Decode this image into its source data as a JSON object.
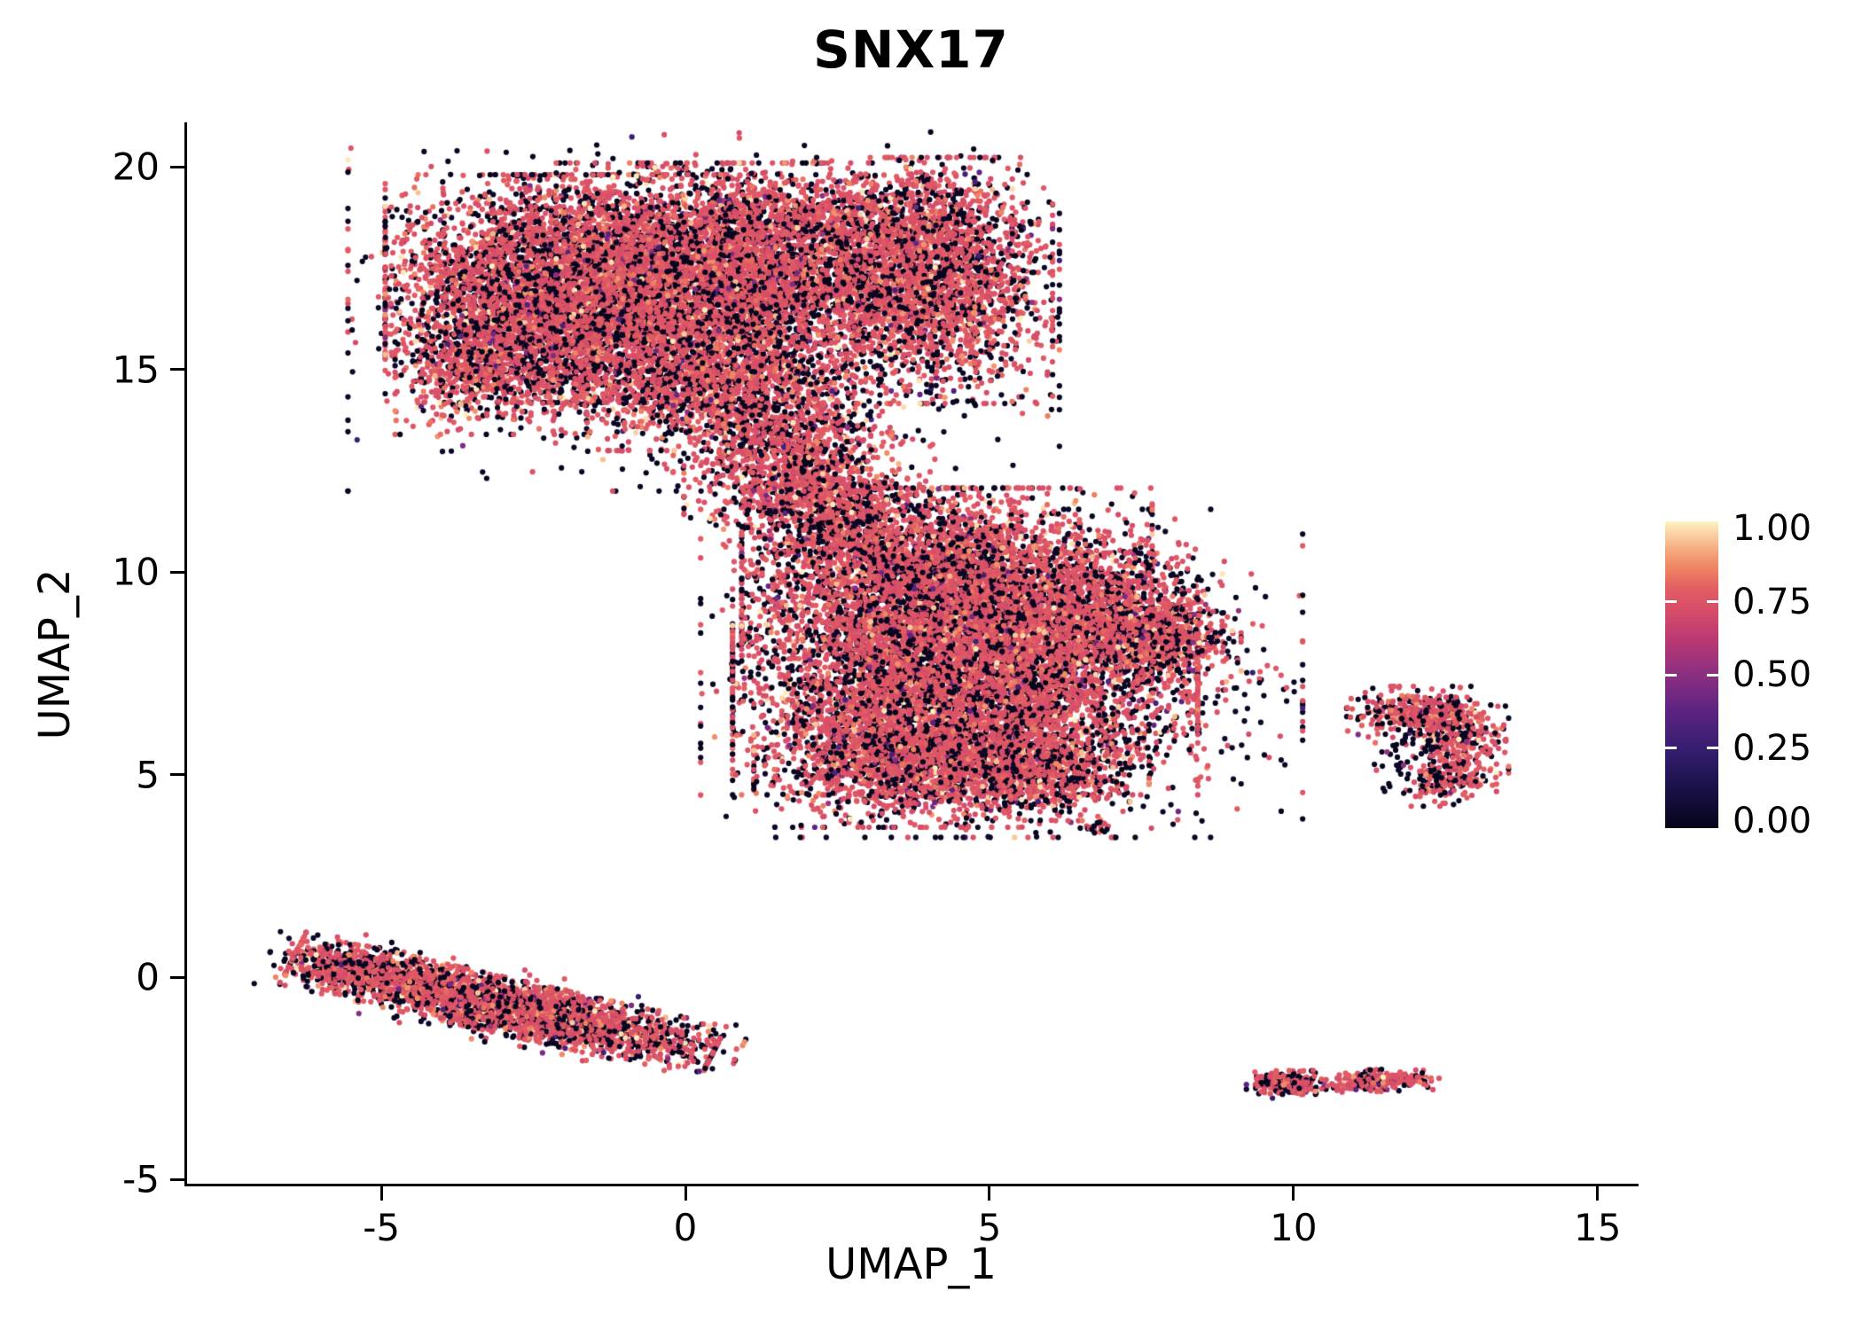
{
  "colors": {
    "background": "#ffffff",
    "axis": "#000000",
    "text": "#000000"
  },
  "chart_data": {
    "type": "scatter",
    "title": "SNX17",
    "xlabel": "UMAP_1",
    "ylabel": "UMAP_2",
    "xlim": [
      -8.21,
      15.63
    ],
    "ylim": [
      -5.1,
      21.06
    ],
    "grid": false,
    "legend_position": "right",
    "x_ticks": [
      {
        "label": "-5",
        "value": -5
      },
      {
        "label": "0",
        "value": 0
      },
      {
        "label": "5",
        "value": 5
      },
      {
        "label": "10",
        "value": 10
      },
      {
        "label": "15",
        "value": 15
      }
    ],
    "y_ticks": [
      {
        "label": "-5",
        "value": -5
      },
      {
        "label": "0",
        "value": 0
      },
      {
        "label": "5",
        "value": 5
      },
      {
        "label": "10",
        "value": 10
      },
      {
        "label": "15",
        "value": 15
      },
      {
        "label": "20",
        "value": 20
      }
    ],
    "colorbar": {
      "ticks": [
        {
          "label": "1.00",
          "value": 1.0
        },
        {
          "label": "0.75",
          "value": 0.75
        },
        {
          "label": "0.50",
          "value": 0.5
        },
        {
          "label": "0.25",
          "value": 0.25
        },
        {
          "label": "0.00",
          "value": 0.0
        }
      ]
    },
    "colormap": {
      "name": "magma-like-expression-scale",
      "stops": [
        [
          0.0,
          "#05041a"
        ],
        [
          0.12,
          "#191046"
        ],
        [
          0.25,
          "#331d6e"
        ],
        [
          0.38,
          "#5c2382"
        ],
        [
          0.5,
          "#8b2f80"
        ],
        [
          0.62,
          "#bc3a72"
        ],
        [
          0.72,
          "#d94f68"
        ],
        [
          0.78,
          "#e25e63"
        ],
        [
          0.85,
          "#ef8562"
        ],
        [
          0.92,
          "#f7b287"
        ],
        [
          1.0,
          "#fdf3c3"
        ]
      ]
    },
    "point_radius_px": 3.1,
    "seed": 20240607,
    "value_distribution": [
      {
        "p": 0.26,
        "lo": 0.0,
        "hi": 0.04
      },
      {
        "p": 0.02,
        "lo": 0.3,
        "hi": 0.55
      },
      {
        "p": 0.61,
        "lo": 0.7,
        "hi": 0.78
      },
      {
        "p": 0.08,
        "lo": 0.78,
        "hi": 0.88
      },
      {
        "p": 0.03,
        "lo": 0.92,
        "hi": 1.0
      }
    ],
    "value_distribution_dark": [
      {
        "p": 0.62,
        "lo": 0.0,
        "hi": 0.05
      },
      {
        "p": 0.05,
        "lo": 0.25,
        "hi": 0.55
      },
      {
        "p": 0.27,
        "lo": 0.7,
        "hi": 0.78
      },
      {
        "p": 0.04,
        "lo": 0.78,
        "hi": 0.88
      },
      {
        "p": 0.02,
        "lo": 0.92,
        "hi": 1.0
      }
    ],
    "clusters": [
      {
        "name": "upper-left-main",
        "components": [
          {
            "cx": 0.3,
            "cy": 16.5,
            "sx": 2.6,
            "sy": 2.0,
            "n": 1500,
            "dark": true
          },
          {
            "cx": -1.9,
            "cy": 17.0,
            "sx": 1.35,
            "sy": 1.25,
            "n": 5200
          },
          {
            "cx": 0.8,
            "cy": 17.4,
            "sx": 1.3,
            "sy": 1.2,
            "n": 3800
          },
          {
            "cx": 3.9,
            "cy": 17.2,
            "sx": 0.95,
            "sy": 1.35,
            "n": 2600
          },
          {
            "cx": 2.9,
            "cy": 18.7,
            "sx": 1.1,
            "sy": 0.5,
            "n": 500
          },
          {
            "cx": -3.2,
            "cy": 15.2,
            "sx": 0.7,
            "sy": 0.8,
            "n": 900
          },
          {
            "cx": 0.3,
            "cy": 14.8,
            "sx": 1.1,
            "sy": 0.8,
            "n": 1400
          },
          {
            "cx": 1.6,
            "cy": 13.3,
            "sx": 0.8,
            "sy": 0.8,
            "n": 900
          },
          {
            "cx": 2.0,
            "cy": 12.0,
            "sx": 0.9,
            "sy": 0.7,
            "n": 500
          }
        ]
      },
      {
        "name": "central-main",
        "components": [
          {
            "cx": 5.2,
            "cy": 7.5,
            "sx": 2.2,
            "sy": 1.8,
            "n": 1600,
            "dark": true
          },
          {
            "cx": 4.3,
            "cy": 9.6,
            "sx": 1.5,
            "sy": 1.1,
            "n": 4200
          },
          {
            "cx": 4.6,
            "cy": 7.2,
            "sx": 1.7,
            "sy": 1.2,
            "n": 4200
          },
          {
            "cx": 3.6,
            "cy": 5.5,
            "sx": 1.1,
            "sy": 0.8,
            "n": 1800
          },
          {
            "cx": 5.6,
            "cy": 5.1,
            "sx": 0.9,
            "sy": 0.55,
            "n": 900
          },
          {
            "cx": 6.8,
            "cy": 8.9,
            "sx": 0.9,
            "sy": 0.7,
            "n": 1100
          },
          {
            "cx": 7.9,
            "cy": 8.3,
            "sx": 0.55,
            "sy": 0.35,
            "n": 450
          },
          {
            "cx": 2.6,
            "cy": 10.9,
            "sx": 0.8,
            "sy": 0.6,
            "n": 500
          },
          {
            "cx": 2.3,
            "cy": 11.7,
            "sx": 0.6,
            "sy": 0.5,
            "n": 250
          },
          {
            "cx": 6.8,
            "cy": 3.7,
            "sx": 0.12,
            "sy": 0.1,
            "n": 25
          }
        ]
      },
      {
        "name": "lower-left-elongated",
        "components": [
          {
            "cx": -3.0,
            "cy": -0.7,
            "sx": 1.8,
            "sy": 0.42,
            "rot": -0.325,
            "n": 450,
            "dark": true
          },
          {
            "cx": -3.0,
            "cy": -0.7,
            "sx": 1.62,
            "sy": 0.3,
            "rot": -0.325,
            "n": 3100
          },
          {
            "cx": -5.6,
            "cy": 0.2,
            "sx": 0.45,
            "sy": 0.28,
            "rot": -0.3,
            "n": 350
          }
        ]
      },
      {
        "name": "right-mid-small",
        "components": [
          {
            "cx": 12.3,
            "cy": 5.8,
            "sx": 0.55,
            "sy": 0.6,
            "n": 160,
            "dark": true
          },
          {
            "cx": 12.0,
            "cy": 6.55,
            "sx": 0.5,
            "sy": 0.28,
            "n": 300
          },
          {
            "cx": 12.75,
            "cy": 5.9,
            "sx": 0.33,
            "sy": 0.45,
            "n": 220
          },
          {
            "cx": 12.55,
            "cy": 4.85,
            "sx": 0.35,
            "sy": 0.28,
            "n": 160
          }
        ]
      },
      {
        "name": "bottom-small-left",
        "components": [
          {
            "cx": 9.9,
            "cy": -2.65,
            "sx": 0.3,
            "sy": 0.15,
            "n": 70,
            "dark": true
          },
          {
            "cx": 9.95,
            "cy": -2.6,
            "sx": 0.26,
            "sy": 0.13,
            "n": 180
          }
        ]
      },
      {
        "name": "bottom-small-right",
        "components": [
          {
            "cx": 11.2,
            "cy": -2.6,
            "sx": 0.15,
            "sy": 0.1,
            "n": 60,
            "dark": true
          },
          {
            "cx": 11.45,
            "cy": -2.55,
            "sx": 0.42,
            "sy": 0.12,
            "rot": 0.05,
            "n": 240
          }
        ]
      }
    ]
  }
}
